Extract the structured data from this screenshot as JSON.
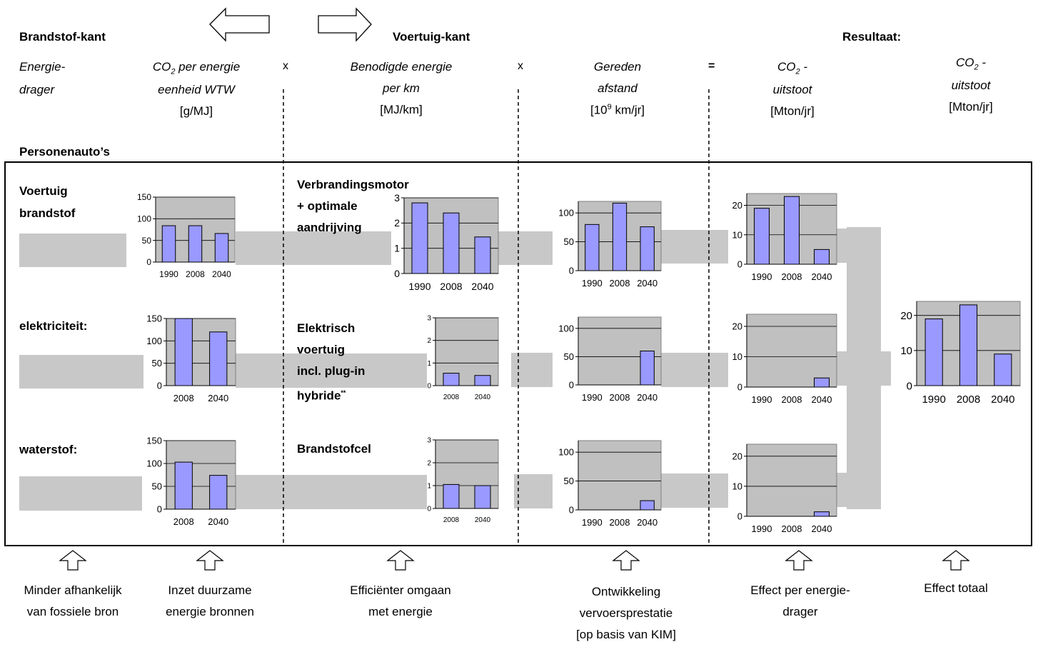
{
  "header": {
    "brandstof_kant": "Brandstof-kant",
    "voertuig_kant": "Voertuig-kant",
    "resultaat": "Resultaat:",
    "personenautos": "Personenauto’s"
  },
  "columns": {
    "energiedrager_1": "Energie-",
    "energiedrager_2": "drager",
    "co2_energie_1a": "CO",
    "co2_energie_1b": "2",
    "co2_energie_1c": " per energie",
    "co2_energie_2": "eenheid WTW",
    "co2_energie_unit": "[g/MJ]",
    "energie_km_1": "Benodigde  energie",
    "energie_km_2": "per km",
    "energie_km_unit": "[MJ/km]",
    "afstand_1": "Gereden",
    "afstand_2": "afstand",
    "afstand_unit_a": "[10",
    "afstand_unit_b": "9",
    "afstand_unit_c": " km/jr]",
    "uitstoot_a1": "CO",
    "uitstoot_a1b": "2",
    "uitstoot_a1c": " -",
    "uitstoot_a2": "uitstoot",
    "uitstoot_a_unit": "[Mton/jr]",
    "uitstoot_b1": "CO",
    "uitstoot_b1b": "2",
    "uitstoot_b1c": " -",
    "uitstoot_b2": "uitstoot",
    "uitstoot_b_unit": "[Mton/jr]"
  },
  "operators": {
    "x1": "x",
    "x2": "x",
    "eq": "="
  },
  "rows": {
    "fuel_1a": "Voertuig",
    "fuel_1b": "brandstof",
    "fuel_2": "elektriciteit:",
    "fuel_3": "waterstof:",
    "veh_1a": "Verbrandingsmotor",
    "veh_1b": "+ optimale",
    "veh_1c": "aandrijving",
    "veh_2a": "Elektrisch",
    "veh_2b": "voertuig",
    "veh_2c": "incl. plug-in",
    "veh_2d": "hybride",
    "veh_2d_sup": "**",
    "veh_3": "Brandstofcel"
  },
  "bottom": {
    "b1a": "Minder afhankelijk",
    "b1b": "van fossiele bron",
    "b2a": "Inzet duurzame",
    "b2b": "energie bronnen",
    "b3a": "Efficiënter omgaan",
    "b3b": "met energie",
    "b4a": "Ontwikkeling",
    "b4b": "vervoersprestatie",
    "b4c": "[op basis van KIM]",
    "b5a": "Effect per energie-",
    "b5b": "drager",
    "b6": "Effect totaal"
  },
  "colors": {
    "bar": "#9999ff",
    "plot_bg": "#c0c0c0",
    "band": "#c8c8c8"
  },
  "chart_data": [
    {
      "id": "co2mj_fossil",
      "type": "bar",
      "categories": [
        "1990",
        "2008",
        "2040"
      ],
      "values": [
        84,
        84,
        66
      ],
      "ylim": [
        0,
        150
      ],
      "yticks": [
        0,
        50,
        100,
        150
      ]
    },
    {
      "id": "co2mj_elec",
      "type": "bar",
      "categories": [
        "2008",
        "2040"
      ],
      "values": [
        155,
        120
      ],
      "ylim": [
        0,
        150
      ],
      "yticks": [
        0,
        50,
        100,
        150
      ]
    },
    {
      "id": "co2mj_h2",
      "type": "bar",
      "categories": [
        "2008",
        "2040"
      ],
      "values": [
        103,
        74
      ],
      "ylim": [
        0,
        150
      ],
      "yticks": [
        0,
        50,
        100,
        150
      ]
    },
    {
      "id": "mjkm_ice",
      "type": "bar",
      "categories": [
        "1990",
        "2008",
        "2040"
      ],
      "values": [
        2.8,
        2.4,
        1.45
      ],
      "ylim": [
        0,
        3
      ],
      "yticks": [
        0,
        1,
        2,
        3
      ]
    },
    {
      "id": "mjkm_ev",
      "type": "bar",
      "categories": [
        "2008",
        "2040"
      ],
      "values": [
        0.55,
        0.45
      ],
      "ylim": [
        0,
        3
      ],
      "yticks": [
        0,
        1,
        2,
        3
      ]
    },
    {
      "id": "mjkm_fc",
      "type": "bar",
      "categories": [
        "2008",
        "2040"
      ],
      "values": [
        1.05,
        1.0
      ],
      "ylim": [
        0,
        3
      ],
      "yticks": [
        0,
        1,
        2,
        3
      ]
    },
    {
      "id": "km_ice",
      "type": "bar",
      "categories": [
        "1990",
        "2008",
        "2040"
      ],
      "values": [
        80,
        117,
        76
      ],
      "ylim": [
        0,
        120
      ],
      "yticks": [
        0,
        50,
        100
      ]
    },
    {
      "id": "km_ev",
      "type": "bar",
      "categories": [
        "1990",
        "2008",
        "2040"
      ],
      "values": [
        0,
        0,
        60
      ],
      "ylim": [
        0,
        120
      ],
      "yticks": [
        0,
        50,
        100
      ]
    },
    {
      "id": "km_fc",
      "type": "bar",
      "categories": [
        "1990",
        "2008",
        "2040"
      ],
      "values": [
        0,
        0,
        16
      ],
      "ylim": [
        0,
        120
      ],
      "yticks": [
        0,
        50,
        100
      ]
    },
    {
      "id": "co2_ice",
      "type": "bar",
      "categories": [
        "1990",
        "2008",
        "2040"
      ],
      "values": [
        19,
        23,
        5
      ],
      "ylim": [
        0,
        24
      ],
      "yticks": [
        0,
        10,
        20
      ]
    },
    {
      "id": "co2_ev",
      "type": "bar",
      "categories": [
        "1990",
        "2008",
        "2040"
      ],
      "values": [
        0,
        0,
        3
      ],
      "ylim": [
        0,
        24
      ],
      "yticks": [
        0,
        10,
        20
      ]
    },
    {
      "id": "co2_fc",
      "type": "bar",
      "categories": [
        "1990",
        "2008",
        "2040"
      ],
      "values": [
        0,
        0,
        1.5
      ],
      "ylim": [
        0,
        24
      ],
      "yticks": [
        0,
        10,
        20
      ]
    },
    {
      "id": "co2_total",
      "type": "bar",
      "categories": [
        "1990",
        "2008",
        "2040"
      ],
      "values": [
        19,
        23,
        9
      ],
      "ylim": [
        0,
        24
      ],
      "yticks": [
        0,
        10,
        20
      ]
    }
  ]
}
